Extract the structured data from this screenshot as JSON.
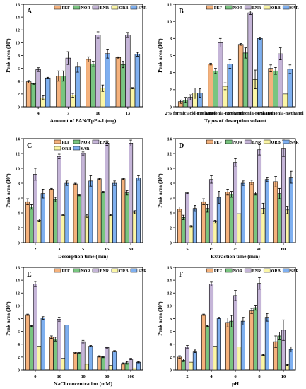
{
  "colors": {
    "PEF": "#f5b27d",
    "NOR": "#79c580",
    "ENR": "#c5b5d8",
    "ORB": "#fbf6a6",
    "SAR": "#7fb0f0"
  },
  "chart_data": [
    {
      "type": "bar",
      "panel_label": "A",
      "xlabel": "Amount of PAN/TpPa-1 (mg)",
      "ylabel": "Peak area (10⁵)",
      "ylim": [
        0,
        16
      ],
      "yticks": [
        0,
        2,
        4,
        6,
        8,
        10,
        12,
        14,
        16
      ],
      "legend": "top",
      "categories": [
        "4",
        "7",
        "10",
        "13"
      ],
      "series": [
        {
          "name": "PEF",
          "values": [
            3.9,
            4.8,
            7.4,
            7.7
          ],
          "errors": [
            0.2,
            0.8,
            0.4,
            0.1
          ]
        },
        {
          "name": "NOR",
          "values": [
            3.6,
            4.8,
            6.7,
            6.6
          ],
          "errors": [
            0.1,
            0.8,
            0.4,
            0.5
          ]
        },
        {
          "name": "ENR",
          "values": [
            5.8,
            7.6,
            11.2,
            11.2
          ],
          "errors": [
            0.3,
            1.0,
            0.5,
            0.4
          ]
        },
        {
          "name": "ORB",
          "values": [
            1.4,
            1.8,
            2.9,
            2.9
          ],
          "errors": [
            0.3,
            0.3,
            0.5,
            0.1
          ]
        },
        {
          "name": "SAR",
          "values": [
            4.5,
            6.2,
            8.3,
            8.2
          ],
          "errors": [
            0.1,
            0.8,
            0.7,
            0.3
          ]
        }
      ]
    },
    {
      "type": "bar",
      "panel_label": "B",
      "xlabel": "Types of desorption solvent",
      "ylabel": "Peak area (10⁵)",
      "ylim": [
        0,
        12
      ],
      "yticks": [
        0,
        2,
        4,
        6,
        8,
        10,
        12
      ],
      "legend": "top",
      "categories": [
        "2% formic acid-methanol",
        "1% ammonia-methanol",
        "2% ammonia-methanol",
        "4% ammonia-methanol"
      ],
      "series": [
        {
          "name": "PEF",
          "values": [
            0.6,
            5.0,
            7.3,
            4.5
          ],
          "errors": [
            0.2,
            0.1,
            0.1,
            0.4
          ]
        },
        {
          "name": "NOR",
          "values": [
            0.8,
            4.2,
            6.3,
            4.2
          ],
          "errors": [
            0.3,
            0.3,
            0.6,
            0.4
          ]
        },
        {
          "name": "ENR",
          "values": [
            1.1,
            7.5,
            11.0,
            6.2
          ],
          "errors": [
            0.3,
            0.5,
            0.2,
            0.7
          ]
        },
        {
          "name": "ORB",
          "values": [
            1.6,
            2.4,
            3.2,
            1.5
          ],
          "errors": [
            0.6,
            0.4,
            1.1,
            0.0
          ]
        },
        {
          "name": "SAR",
          "values": [
            1.6,
            5.0,
            8.0,
            4.4
          ],
          "errors": [
            0.5,
            0.5,
            0.1,
            0.5
          ]
        }
      ]
    },
    {
      "type": "bar",
      "panel_label": "C",
      "xlabel": "Desorption time (min)",
      "ylabel": "Peak area (10⁵)",
      "ylim": [
        0,
        14
      ],
      "yticks": [
        0,
        2,
        4,
        6,
        8,
        10,
        12,
        14
      ],
      "legend": "top",
      "categories": [
        "2",
        "3",
        "5",
        "15",
        "30"
      ],
      "series": [
        {
          "name": "PEF",
          "values": [
            5.5,
            7.2,
            7.9,
            8.6,
            8.6
          ],
          "errors": [
            0.4,
            0.1,
            0.1,
            0.1,
            0.1
          ]
        },
        {
          "name": "NOR",
          "values": [
            4.8,
            5.8,
            6.4,
            6.8,
            6.7
          ],
          "errors": [
            0.3,
            0.3,
            0.1,
            0.1,
            0.3
          ]
        },
        {
          "name": "ENR",
          "values": [
            9.2,
            11.6,
            12.0,
            13.4,
            13.4
          ],
          "errors": [
            0.8,
            0.3,
            0.2,
            0.3,
            0.4
          ]
        },
        {
          "name": "ORB",
          "values": [
            3.0,
            3.7,
            3.6,
            3.7,
            4.1
          ],
          "errors": [
            0.2,
            0.1,
            0.2,
            0.1,
            0.2
          ]
        },
        {
          "name": "SAR",
          "values": [
            6.6,
            8.0,
            8.3,
            8.0,
            8.7
          ],
          "errors": [
            0.6,
            0.3,
            0.7,
            0.3,
            0.3
          ]
        }
      ]
    },
    {
      "type": "bar",
      "panel_label": "D",
      "xlabel": "Extraction time (min)",
      "ylabel": "Peak area (10⁵)",
      "ylim": [
        0,
        14
      ],
      "yticks": [
        0,
        2,
        4,
        6,
        8,
        10,
        12,
        14
      ],
      "legend": "top",
      "categories": [
        "5",
        "15",
        "25",
        "40",
        "60"
      ],
      "series": [
        {
          "name": "PEF",
          "values": [
            4.5,
            5.5,
            6.8,
            8.1,
            8.2
          ],
          "errors": [
            0.3,
            0.4,
            0.4,
            0.3,
            0.7
          ]
        },
        {
          "name": "NOR",
          "values": [
            3.4,
            4.6,
            6.5,
            6.6,
            6.6
          ],
          "errors": [
            0.3,
            0.5,
            0.4,
            0.2,
            0.7
          ]
        },
        {
          "name": "ENR",
          "values": [
            6.7,
            8.5,
            10.8,
            12.5,
            12.7
          ],
          "errors": [
            0.1,
            0.5,
            0.5,
            0.7,
            1.1
          ]
        },
        {
          "name": "ORB",
          "values": [
            2.2,
            2.8,
            3.9,
            4.6,
            4.4
          ],
          "errors": [
            0.1,
            0.2,
            0.0,
            0.7,
            0.5
          ]
        },
        {
          "name": "SAR",
          "values": [
            4.6,
            6.1,
            8.0,
            8.5,
            8.8
          ],
          "errors": [
            0.4,
            0.8,
            0.3,
            0.3,
            0.8
          ]
        }
      ]
    },
    {
      "type": "bar",
      "panel_label": "E",
      "xlabel": "NaCl concentration (mM)",
      "ylabel": "Peak area (10⁵)",
      "ylim": [
        0,
        16
      ],
      "yticks": [
        0,
        2,
        4,
        6,
        8,
        10,
        12,
        14,
        16
      ],
      "legend": "top",
      "categories": [
        "0",
        "10",
        "30",
        "60",
        "100"
      ],
      "series": [
        {
          "name": "PEF",
          "values": [
            8.6,
            5.1,
            2.7,
            2.1,
            1.0
          ],
          "errors": [
            0.1,
            0.2,
            0.1,
            0.1,
            0.1
          ]
        },
        {
          "name": "NOR",
          "values": [
            6.8,
            4.8,
            2.6,
            2.0,
            1.1
          ],
          "errors": [
            0.1,
            0.3,
            0.1,
            0.1,
            0.2
          ]
        },
        {
          "name": "ENR",
          "values": [
            13.4,
            7.9,
            4.4,
            3.5,
            1.7
          ],
          "errors": [
            0.4,
            0.3,
            0.2,
            0.1,
            0.1
          ]
        },
        {
          "name": "ORB",
          "values": [
            3.7,
            1.8,
            0.9,
            0.7,
            0.3
          ],
          "errors": [
            0.0,
            0.0,
            0.0,
            0.0,
            0.0
          ]
        },
        {
          "name": "SAR",
          "values": [
            8.1,
            7.0,
            3.7,
            2.9,
            1.2
          ],
          "errors": [
            0.2,
            0.0,
            0.1,
            0.1,
            0.1
          ]
        }
      ]
    },
    {
      "type": "bar",
      "panel_label": "F",
      "xlabel": "pH",
      "ylabel": "Peak area (10⁵)",
      "ylim": [
        0,
        16
      ],
      "yticks": [
        0,
        2,
        4,
        6,
        8,
        10,
        12,
        14,
        16
      ],
      "legend": "top",
      "categories": [
        "2",
        "4",
        "6",
        "8",
        "10"
      ],
      "series": [
        {
          "name": "PEF",
          "values": [
            2.0,
            8.6,
            7.4,
            9.2,
            4.4
          ],
          "errors": [
            0.2,
            0.1,
            0.7,
            0.4,
            0.9
          ]
        },
        {
          "name": "NOR",
          "values": [
            1.5,
            6.8,
            7.6,
            9.7,
            5.3
          ],
          "errors": [
            0.2,
            0.1,
            0.9,
            0.4,
            0.6
          ]
        },
        {
          "name": "ENR",
          "values": [
            3.6,
            13.4,
            11.6,
            13.5,
            6.2
          ],
          "errors": [
            0.2,
            0.3,
            0.8,
            0.9,
            1.6
          ]
        },
        {
          "name": "ORB",
          "values": [
            1.2,
            3.7,
            3.6,
            2.3,
            0.8
          ],
          "errors": [
            0.0,
            0.0,
            0.0,
            0.1,
            0.1
          ]
        },
        {
          "name": "SAR",
          "values": [
            2.9,
            8.1,
            7.6,
            8.2,
            3.2
          ],
          "errors": [
            0.2,
            0.1,
            0.6,
            0.6,
            0.4
          ]
        }
      ]
    }
  ]
}
